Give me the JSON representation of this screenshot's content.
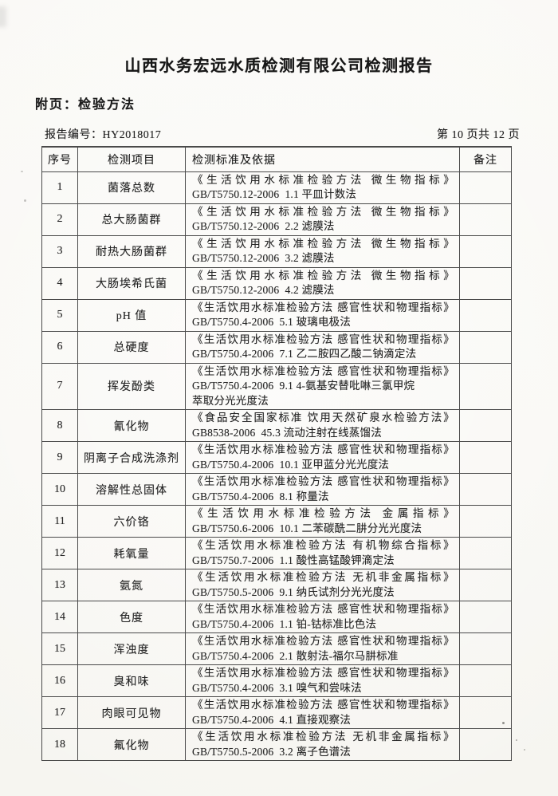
{
  "colors": {
    "paper": "#f9f8f4",
    "ink": "#262626",
    "line": "#4a4a4a"
  },
  "document": {
    "title": "山西水务宏远水质检测有限公司检测报告",
    "attachment_label": "附页：检验方法",
    "report_number": "报告编号：HY2018017",
    "page_indicator": "第 10 页共 12 页"
  },
  "table": {
    "headers": {
      "no": "序号",
      "item": "检测项目",
      "standard": "检测标准及依据",
      "remark": "备注"
    },
    "rows": [
      {
        "no": "1",
        "item": "菌落总数",
        "std_title": "《生活饮用水标准检验方法 微生物指标》",
        "std_method": "GB/T5750.12-2006  1.1 平皿计数法",
        "remark": ""
      },
      {
        "no": "2",
        "item": "总大肠菌群",
        "std_title": "《生活饮用水标准检验方法 微生物指标》",
        "std_method": "GB/T5750.12-2006  2.2 滤膜法",
        "remark": ""
      },
      {
        "no": "3",
        "item": "耐热大肠菌群",
        "std_title": "《生活饮用水标准检验方法 微生物指标》",
        "std_method": "GB/T5750.12-2006  3.2 滤膜法",
        "remark": ""
      },
      {
        "no": "4",
        "item": "大肠埃希氏菌",
        "std_title": "《生活饮用水标准检验方法 微生物指标》",
        "std_method": "GB/T5750.12-2006  4.2 滤膜法",
        "remark": ""
      },
      {
        "no": "5",
        "item": "pH 值",
        "std_title": "《生活饮用水标准检验方法 感官性状和物理指标》",
        "std_method": "GB/T5750.4-2006  5.1 玻璃电极法",
        "remark": ""
      },
      {
        "no": "6",
        "item": "总硬度",
        "std_title": "《生活饮用水标准检验方法 感官性状和物理指标》",
        "std_method": "GB/T5750.4-2006  7.1 乙二胺四乙酸二钠滴定法",
        "remark": ""
      },
      {
        "no": "7",
        "item": "挥发酚类",
        "std_title": "《生活饮用水标准检验方法 感官性状和物理指标》",
        "std_method": "GB/T5750.4-2006  9.1 4-氨基安替吡啉三氯甲烷\n萃取分光光度法",
        "remark": ""
      },
      {
        "no": "8",
        "item": "氰化物",
        "std_title": "《食品安全国家标准 饮用天然矿泉水检验方法》",
        "std_method": "GB8538-2006  45.3 流动注射在线蒸馏法",
        "remark": ""
      },
      {
        "no": "9",
        "item": "阴离子合成洗涤剂",
        "std_title": "《生活饮用水标准检验方法 感官性状和物理指标》",
        "std_method": "GB/T5750.4-2006  10.1 亚甲蓝分光光度法",
        "remark": ""
      },
      {
        "no": "10",
        "item": "溶解性总固体",
        "std_title": "《生活饮用水标准检验方法 感官性状和物理指标》",
        "std_method": "GB/T5750.4-2006  8.1 称量法",
        "remark": ""
      },
      {
        "no": "11",
        "item": "六价铬",
        "std_title": "《生活饮用水标准检验方法 金属指标》",
        "std_method": "GB/T5750.6-2006  10.1 二苯碳酰二肼分光光度法",
        "remark": ""
      },
      {
        "no": "12",
        "item": "耗氧量",
        "std_title": "《生活饮用水标准检验方法 有机物综合指标》",
        "std_method": "GB/T5750.7-2006  1.1 酸性高锰酸钾滴定法",
        "remark": ""
      },
      {
        "no": "13",
        "item": "氨氮",
        "std_title": "《生活饮用水标准检验方法 无机非金属指标》",
        "std_method": "GB/T5750.5-2006  9.1 纳氏试剂分光光度法",
        "remark": ""
      },
      {
        "no": "14",
        "item": "色度",
        "std_title": "《生活饮用水标准检验方法 感官性状和物理指标》",
        "std_method": "GB/T5750.4-2006  1.1 铂-钴标准比色法",
        "remark": ""
      },
      {
        "no": "15",
        "item": "浑浊度",
        "std_title": "《生活饮用水标准检验方法 感官性状和物理指标》",
        "std_method": "GB/T5750.4-2006  2.1 散射法-福尔马肼标准",
        "remark": ""
      },
      {
        "no": "16",
        "item": "臭和味",
        "std_title": "《生活饮用水标准检验方法 感官性状和物理指标》",
        "std_method": "GB/T5750.4-2006  3.1 嗅气和尝味法",
        "remark": ""
      },
      {
        "no": "17",
        "item": "肉眼可见物",
        "std_title": "《生活饮用水标准检验方法 感官性状和物理指标》",
        "std_method": "GB/T5750.4-2006  4.1 直接观察法",
        "remark": ""
      },
      {
        "no": "18",
        "item": "氟化物",
        "std_title": "《生活饮用水标准检验方法 无机非金属指标》",
        "std_method": "GB/T5750.5-2006  3.2 离子色谱法",
        "remark": ""
      }
    ]
  }
}
